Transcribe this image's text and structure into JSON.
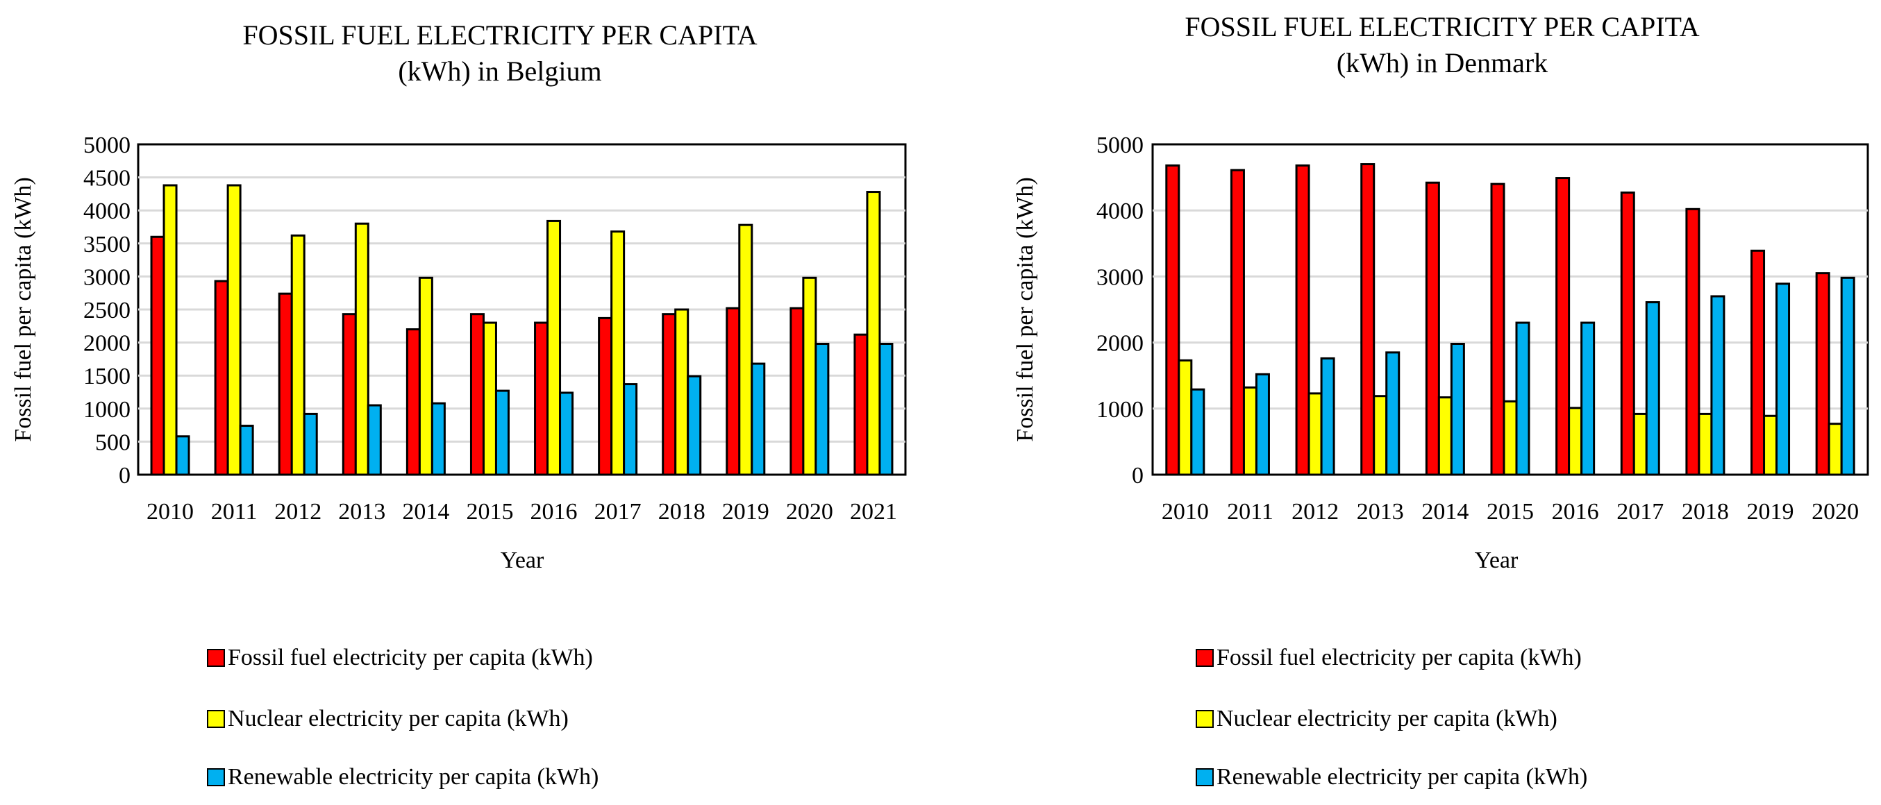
{
  "charts": [
    {
      "type": "bar",
      "title_line1": "FOSSIL FUEL ELECTRICITY PER CAPITA",
      "title_line2": "(kWh) in Belgium",
      "xlabel": "Year",
      "ylabel": "Fossil fuel per capita (kWh)",
      "ylim": [
        0,
        5000
      ],
      "yticks": [
        0,
        500,
        1000,
        1500,
        2000,
        2500,
        3000,
        3500,
        4000,
        4500,
        5000
      ],
      "grid": true,
      "categories": [
        "2010",
        "2011",
        "2012",
        "2013",
        "2014",
        "2015",
        "2016",
        "2017",
        "2018",
        "2019",
        "2020",
        "2021"
      ],
      "series": [
        {
          "name": "Fossil fuel electricity per capita (kWh)",
          "color": "#ff0000",
          "values": [
            3600,
            2930,
            2740,
            2430,
            2200,
            2430,
            2300,
            2370,
            2430,
            2520,
            2520,
            2120
          ]
        },
        {
          "name": "Nuclear electricity per capita (kWh)",
          "color": "#ffff00",
          "values": [
            4380,
            4380,
            3620,
            3800,
            2980,
            2300,
            3840,
            3680,
            2500,
            3780,
            2980,
            4280
          ]
        },
        {
          "name": "Renewable electricity per capita (kWh)",
          "color": "#00b0f0",
          "values": [
            580,
            740,
            920,
            1050,
            1080,
            1270,
            1240,
            1370,
            1490,
            1680,
            1980,
            1980
          ]
        }
      ]
    },
    {
      "type": "bar",
      "title_line1": "FOSSIL FUEL ELECTRICITY PER CAPITA",
      "title_line2": "(kWh) in Denmark",
      "xlabel": "Year",
      "ylabel": "Fossil fuel per capita (kWh)",
      "ylim": [
        0,
        5000
      ],
      "yticks": [
        0,
        1000,
        2000,
        3000,
        4000,
        5000
      ],
      "grid": true,
      "categories": [
        "2010",
        "2011",
        "2012",
        "2013",
        "2014",
        "2015",
        "2016",
        "2017",
        "2018",
        "2019",
        "2020"
      ],
      "series": [
        {
          "name": "Fossil fuel electricity per capita (kWh)",
          "color": "#ff0000",
          "values": [
            4680,
            4610,
            4680,
            4700,
            4420,
            4400,
            4490,
            4270,
            4020,
            3390,
            3050
          ]
        },
        {
          "name": "Nuclear electricity per capita (kWh)",
          "color": "#ffff00",
          "values": [
            1730,
            1320,
            1230,
            1190,
            1170,
            1110,
            1010,
            920,
            920,
            890,
            770
          ]
        },
        {
          "name": "Renewable electricity per capita (kWh)",
          "color": "#00b0f0",
          "values": [
            1290,
            1520,
            1760,
            1850,
            1980,
            2300,
            2300,
            2610,
            2700,
            2890,
            2980
          ]
        }
      ]
    }
  ]
}
